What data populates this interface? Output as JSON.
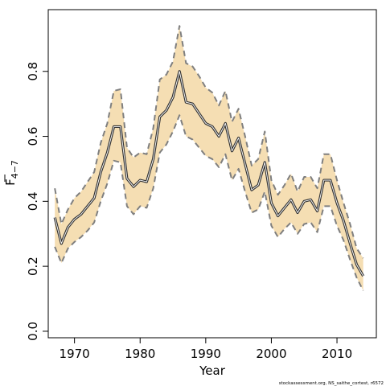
{
  "chart_data": {
    "type": "line",
    "xlabel": "Year",
    "ylabel_main": "F",
    "ylabel_sub": "4−7",
    "xlim": [
      1966,
      2016
    ],
    "ylim": [
      -0.02,
      0.99
    ],
    "x_ticks": [
      1970,
      1980,
      1990,
      2000,
      2010
    ],
    "y_ticks": [
      0.0,
      0.2,
      0.4,
      0.6,
      0.8
    ],
    "y_tick_labels": [
      "0.0",
      "0.2",
      "0.4",
      "0.6",
      "0.8"
    ],
    "grid": false,
    "colors": {
      "band": "#f5deb3",
      "line": "#333333",
      "bound": "#7f7f7f"
    },
    "x": [
      1967,
      1968,
      1969,
      1970,
      1971,
      1972,
      1973,
      1974,
      1975,
      1976,
      1977,
      1978,
      1979,
      1980,
      1981,
      1982,
      1983,
      1984,
      1985,
      1986,
      1987,
      1988,
      1989,
      1990,
      1991,
      1992,
      1993,
      1994,
      1995,
      1996,
      1997,
      1998,
      1999,
      2000,
      2001,
      2002,
      2003,
      2004,
      2005,
      2006,
      2007,
      2008,
      2009,
      2010,
      2011,
      2012,
      2013,
      2014
    ],
    "series": [
      {
        "role": "estimate",
        "values": [
          0.35,
          0.27,
          0.32,
          0.345,
          0.36,
          0.385,
          0.41,
          0.49,
          0.55,
          0.63,
          0.63,
          0.47,
          0.445,
          0.465,
          0.46,
          0.53,
          0.66,
          0.68,
          0.72,
          0.8,
          0.705,
          0.7,
          0.67,
          0.64,
          0.63,
          0.6,
          0.64,
          0.555,
          0.595,
          0.515,
          0.435,
          0.45,
          0.52,
          0.395,
          0.355,
          0.38,
          0.405,
          0.365,
          0.4,
          0.405,
          0.37,
          0.465,
          0.465,
          0.395,
          0.34,
          0.27,
          0.205,
          0.17
        ]
      },
      {
        "role": "upper",
        "values": [
          0.44,
          0.33,
          0.375,
          0.41,
          0.43,
          0.46,
          0.49,
          0.58,
          0.64,
          0.74,
          0.745,
          0.565,
          0.535,
          0.55,
          0.545,
          0.625,
          0.775,
          0.79,
          0.83,
          0.94,
          0.825,
          0.815,
          0.785,
          0.75,
          0.735,
          0.695,
          0.74,
          0.645,
          0.685,
          0.6,
          0.51,
          0.53,
          0.615,
          0.465,
          0.42,
          0.45,
          0.485,
          0.43,
          0.475,
          0.475,
          0.44,
          0.545,
          0.545,
          0.465,
          0.395,
          0.33,
          0.255,
          0.225
        ]
      },
      {
        "role": "lower",
        "values": [
          0.26,
          0.21,
          0.255,
          0.275,
          0.29,
          0.31,
          0.335,
          0.4,
          0.455,
          0.525,
          0.52,
          0.385,
          0.36,
          0.385,
          0.38,
          0.44,
          0.55,
          0.575,
          0.615,
          0.665,
          0.6,
          0.59,
          0.565,
          0.54,
          0.53,
          0.505,
          0.545,
          0.465,
          0.5,
          0.43,
          0.365,
          0.375,
          0.43,
          0.325,
          0.29,
          0.315,
          0.335,
          0.3,
          0.33,
          0.335,
          0.305,
          0.385,
          0.385,
          0.325,
          0.28,
          0.22,
          0.165,
          0.125
        ]
      }
    ]
  },
  "credit": "stockassessment.org, NS_saithe_cortest, r6572"
}
